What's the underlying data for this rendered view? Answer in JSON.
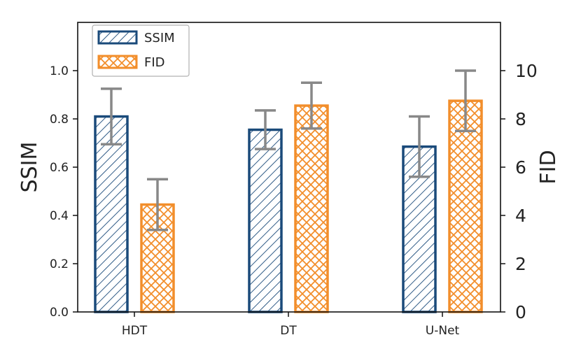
{
  "chart_data": {
    "type": "bar",
    "categories": [
      "HDT",
      "DT",
      "U-Net"
    ],
    "series": [
      {
        "name": "SSIM",
        "axis": "left",
        "values": [
          0.81,
          0.755,
          0.685
        ],
        "errors": [
          0.115,
          0.08,
          0.125
        ],
        "color": "#1a4a7a",
        "hatch": "diagonal"
      },
      {
        "name": "FID",
        "axis": "right",
        "values": [
          4.45,
          8.55,
          8.75
        ],
        "errors": [
          1.05,
          0.95,
          1.25
        ],
        "color": "#f28e2b",
        "hatch": "cross"
      }
    ],
    "left_axis": {
      "label": "SSIM",
      "ylim": [
        0,
        1.2
      ],
      "ticks": [
        "0.0",
        "0.2",
        "0.4",
        "0.6",
        "0.8",
        "1.0"
      ]
    },
    "right_axis": {
      "label": "FID",
      "ylim": [
        0,
        12
      ],
      "ticks": [
        "0",
        "2",
        "4",
        "6",
        "8",
        "10"
      ]
    },
    "error_bar_color": "#888888",
    "legend_position": "upper-left",
    "grid": false
  }
}
